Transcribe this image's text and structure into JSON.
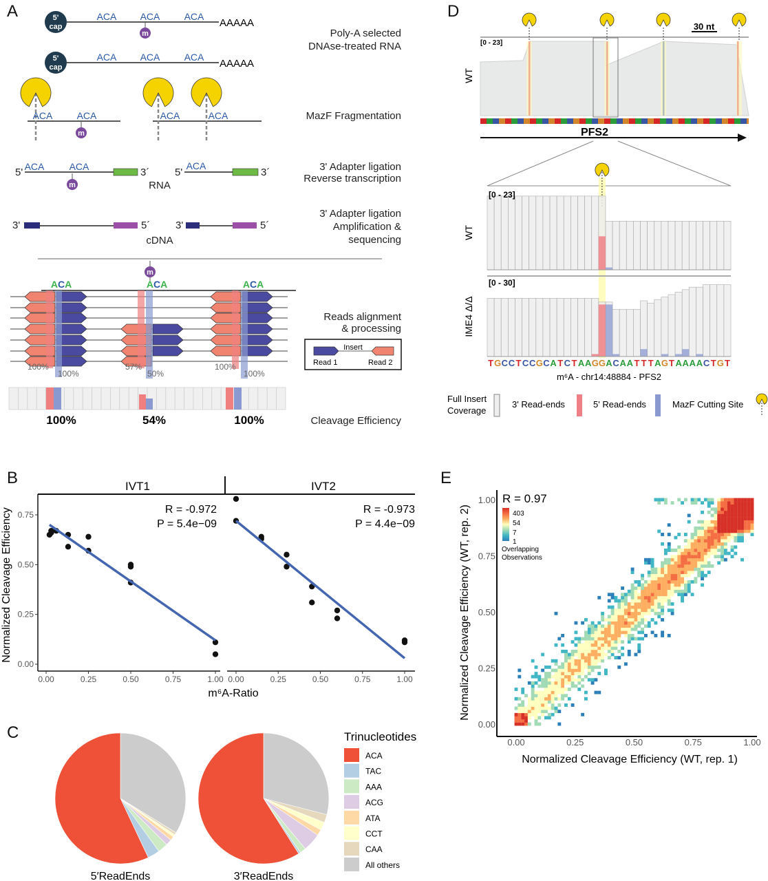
{
  "panels": {
    "A": "A",
    "B": "B",
    "C": "C",
    "D": "D",
    "E": "E"
  },
  "panel_a": {
    "cap_top": "5'",
    "cap_bottom": "cap",
    "motif": "ACA",
    "m": "m",
    "polya": "AAAAA",
    "five": "5'",
    "three": "3´",
    "three_b": "3'",
    "five_b": "5´",
    "rna": "RNA",
    "cdna": "cDNA",
    "steps": [
      "Poly-A selected",
      "DNAse-treated RNA",
      "MazF Fragmentation",
      "3' Adapter ligation",
      "Reverse transcription",
      "3' Adapter ligation",
      "Amplification &",
      "sequencing",
      "Reads alignment",
      "& processing",
      "Cleavage Efficiency"
    ],
    "read_pcts": [
      "100%",
      "100%",
      "57%",
      "50%",
      "100%",
      "100%"
    ],
    "cleavage": [
      "100%",
      "54%",
      "100%"
    ],
    "legend": {
      "insert": "Insert",
      "read1": "Read 1",
      "read2": "Read 2"
    },
    "colors": {
      "read1": "#4a4aa0",
      "read2": "#f08470",
      "aca_a": "#3cb44b",
      "aca_c": "#2a5aa8",
      "m": "#7b4a9c",
      "mazf": "#f5d300"
    }
  },
  "panel_d": {
    "range_top": "[0 - 23]",
    "range_wt": "[0 - 23]",
    "range_ime4": "[0 - 30]",
    "scale": "30 nt",
    "gene": "PFS2",
    "track_wt": "WT",
    "track_ime4": "IME4 Δ/Δ",
    "sequence": "TGCCTCCGCATCTAAGGACAATTTAGTAAAACTGT",
    "locus": "m⁶A - chr14:48884 - PFS2",
    "legend": {
      "coverage_1": "Full Insert",
      "coverage_2": "Coverage",
      "three": "3' Read-ends",
      "five": "5' Read-ends",
      "mazf": "MazF Cutting Site"
    },
    "wt_coverage": [
      22,
      22,
      22,
      22,
      22,
      22,
      22,
      22,
      22,
      22,
      22,
      22,
      22,
      22,
      22,
      22,
      22,
      14.5,
      14.5,
      14.5,
      14.5,
      14.5,
      14.5,
      14.5,
      14.5,
      14.5,
      14.5,
      14.5,
      14.5,
      14.5,
      14.5,
      14.5,
      14.5,
      14.5,
      14.5
    ],
    "wt_3prime": {
      "17": 10
    },
    "wt_5prime": {
      "18": 0.7
    },
    "ime4_coverage": [
      23.5,
      23.5,
      23.5,
      23.5,
      23.5,
      23.5,
      23.5,
      23.5,
      23.5,
      23.5,
      23.5,
      23.5,
      23.5,
      23.5,
      23.5,
      23.5,
      22,
      22,
      19,
      19,
      19,
      19,
      22.5,
      21.5,
      23,
      24,
      25,
      26,
      27,
      28,
      28,
      29,
      29,
      29,
      29
    ],
    "ime4_3prime": {
      "16": 1,
      "17": 21
    },
    "ime4_5prime": {
      "18": 21,
      "19": 1,
      "23": 3,
      "26": 1,
      "28": 1,
      "29": 3,
      "31": 1
    },
    "base_colors": {
      "A": "#2a9d3a",
      "C": "#3a55a4",
      "G": "#d2872c",
      "T": "#d62728"
    }
  },
  "chart_data": [
    {
      "id": "B",
      "type": "scatter",
      "xlabel": "m⁶A-Ratio",
      "ylabel": "Normalized Cleavage Efficiency",
      "xlim": [
        0,
        1
      ],
      "ylim": [
        0,
        0.95
      ],
      "xticks": [
        "0.00",
        "0.25",
        "0.50",
        "0.75",
        "1.00"
      ],
      "yticks": [
        "0.00",
        "0.25",
        "0.50",
        "0.75"
      ],
      "facets": [
        {
          "name": "IVT1",
          "r": "R = -0.972",
          "p": "P = 5.4e−09",
          "points": [
            [
              0.02,
              0.65
            ],
            [
              0.03,
              0.66
            ],
            [
              0.03,
              0.67
            ],
            [
              0.06,
              0.67
            ],
            [
              0.13,
              0.65
            ],
            [
              0.13,
              0.59
            ],
            [
              0.25,
              0.64
            ],
            [
              0.25,
              0.57
            ],
            [
              0.5,
              0.49
            ],
            [
              0.5,
              0.5
            ],
            [
              0.5,
              0.41
            ],
            [
              1,
              0.11
            ],
            [
              1,
              0.05
            ]
          ],
          "fit": [
            [
              0.02,
              0.7
            ],
            [
              1,
              0.12
            ]
          ]
        },
        {
          "name": "IVT2",
          "r": "R = -0.973",
          "p": "P = 4.4e−09",
          "points": [
            [
              0,
              0.83
            ],
            [
              0,
              0.72
            ],
            [
              0.15,
              0.64
            ],
            [
              0.15,
              0.63
            ],
            [
              0.3,
              0.55
            ],
            [
              0.3,
              0.49
            ],
            [
              0.45,
              0.39
            ],
            [
              0.45,
              0.31
            ],
            [
              0.6,
              0.27
            ],
            [
              0.6,
              0.23
            ],
            [
              1,
              0.12
            ],
            [
              1,
              0.11
            ]
          ],
          "fit": [
            [
              0,
              0.72
            ],
            [
              1,
              0.03
            ]
          ]
        }
      ],
      "fit_color": "#4466b0"
    },
    {
      "id": "C",
      "type": "pie",
      "legend_title": "Trinucleotides",
      "categories": [
        "ACA",
        "TAC",
        "AAA",
        "ACG",
        "ATA",
        "CCT",
        "CAA",
        "All others"
      ],
      "colors": [
        "#ee5137",
        "#b3cde3",
        "#ccebc5",
        "#decbe4",
        "#fed9a6",
        "#ffffcc",
        "#e5d8bd",
        "#cccccc"
      ],
      "series": [
        {
          "name": "5′ReadEnds",
          "values": [
            57,
            3,
            2.5,
            1.5,
            1,
            0.6,
            0.6,
            33.8
          ]
        },
        {
          "name": "3′ReadEnds",
          "values": [
            59,
            0.5,
            1.5,
            4.5,
            1.5,
            2,
            2,
            29
          ]
        }
      ]
    },
    {
      "id": "E",
      "type": "heatmap",
      "xlabel": "Normalized Cleavage Efficiency (WT, rep. 1)",
      "ylabel": "Normalized Cleavage Efficiency (WT, rep. 2)",
      "xlim": [
        0,
        1
      ],
      "ylim": [
        0,
        1
      ],
      "xticks": [
        "0.00",
        "0.25",
        "0.50",
        "0.75",
        "1.00"
      ],
      "yticks": [
        "0.00",
        "0.25",
        "0.50",
        "0.75",
        "1.00"
      ],
      "r": "R = 0.97",
      "legend_breaks": [
        "403",
        "54",
        "7",
        "1"
      ],
      "legend_title_1": "Overlapping",
      "legend_title_2": "Observations"
    }
  ]
}
